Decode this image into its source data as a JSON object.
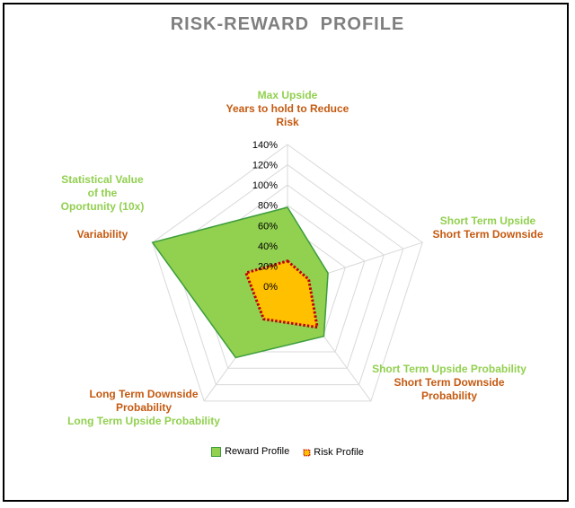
{
  "chart_data": {
    "type": "radar",
    "title": "RISK-REWARD  PROFILE",
    "axis_ticks": [
      "0%",
      "20%",
      "40%",
      "60%",
      "80%",
      "100%",
      "120%",
      "140%"
    ],
    "rmax": 1.4,
    "axes": [
      {
        "reward_label": [
          "Max Upside"
        ],
        "risk_label": [
          "Years to hold to Reduce",
          "Risk"
        ]
      },
      {
        "reward_label": [
          "Short Term Upside"
        ],
        "risk_label": [
          "Short Term Downside"
        ]
      },
      {
        "reward_label": [
          "Short Term Upside Probability"
        ],
        "risk_label": [
          "Short Term Downside",
          "Probability"
        ]
      },
      {
        "reward_label": [
          "Long Term Upside Probability"
        ],
        "risk_label": [
          "Long Term Downside",
          "Probability"
        ]
      },
      {
        "reward_label": [
          "Statistical Value",
          "of the",
          "Oportunity (10x)"
        ],
        "risk_label": [
          "Variability"
        ]
      }
    ],
    "series": [
      {
        "name": "Reward Profile",
        "values": [
          0.78,
          0.42,
          0.61,
          0.87,
          1.4
        ],
        "color": "#92d050",
        "stroke": "#3c9d3c"
      },
      {
        "name": "Risk Profile",
        "values": [
          0.25,
          0.22,
          0.5,
          0.4,
          0.43
        ],
        "color": "#ffc000",
        "stroke": "#c00000"
      }
    ],
    "legend_position": "bottom",
    "reward_label_color": "#92d050",
    "risk_label_color": "#c55a11"
  }
}
